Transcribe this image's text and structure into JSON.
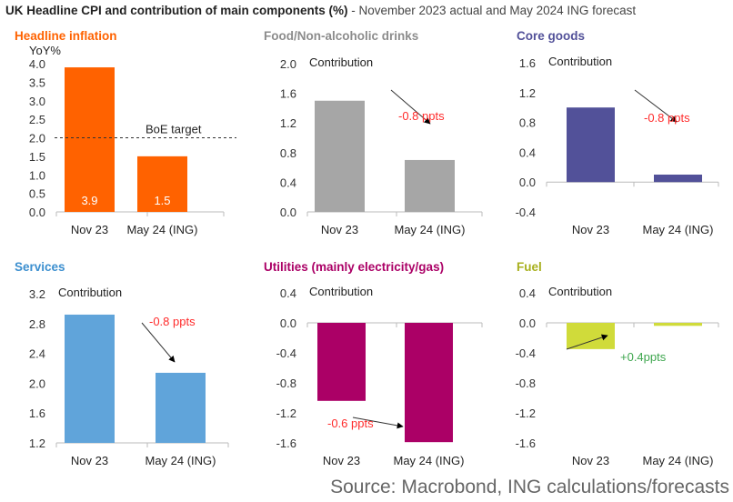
{
  "header": {
    "title_bold": "UK Headline CPI and contribution of main components (%)",
    "title_rest": " - November 2023 actual and May 2024 ING forecast"
  },
  "source": "Source: Macrobond, ING calculations/forecasts",
  "chart_data": [
    {
      "type": "bar",
      "title": "Headline inflation",
      "title_color": "#FF6200",
      "bar_color": "#FF6200",
      "ylabel": "YoY%",
      "categories": [
        "Nov 23",
        "May 24 (ING)"
      ],
      "values": [
        3.9,
        1.5
      ],
      "data_labels": [
        "3.9",
        "1.5"
      ],
      "ylim": [
        0.0,
        4.0
      ],
      "yticks": [
        "4.0",
        "3.5",
        "3.0",
        "2.5",
        "2.0",
        "1.5",
        "1.0",
        "0.5",
        "0.0"
      ],
      "reference_line": {
        "value": 2.0,
        "label": "BoE target",
        "style": "dashed"
      }
    },
    {
      "type": "bar",
      "title": "Food/Non-alcoholic drinks",
      "title_color": "#8C8C8C",
      "bar_color": "#A6A6A6",
      "ylabel": "Contribution",
      "categories": [
        "Nov 23",
        "May 24 (ING)"
      ],
      "values": [
        1.5,
        0.7
      ],
      "ylim": [
        0.0,
        2.0
      ],
      "yticks": [
        "2.0",
        "1.6",
        "1.2",
        "0.8",
        "0.4",
        "0.0"
      ],
      "annotation": {
        "text": "-0.8 ppts",
        "color": "#FF2B2B"
      }
    },
    {
      "type": "bar",
      "title": "Core goods",
      "title_color": "#525199",
      "bar_color": "#525199",
      "ylabel": "Contribution",
      "categories": [
        "Nov 23",
        "May 24 (ING)"
      ],
      "values": [
        1.0,
        0.1
      ],
      "ylim": [
        -0.4,
        1.6
      ],
      "yticks": [
        "1.6",
        "1.2",
        "0.8",
        "0.4",
        "0.0",
        "-0.4"
      ],
      "annotation": {
        "text": "-0.8 ppts",
        "color": "#FF2B2B"
      }
    },
    {
      "type": "bar",
      "title": "Services",
      "title_color": "#3C8FCF",
      "bar_color": "#60A4DA",
      "ylabel": "Contribution",
      "categories": [
        "Nov 23",
        "May 24 (ING)"
      ],
      "values": [
        2.92,
        2.14
      ],
      "ylim": [
        1.2,
        3.2
      ],
      "yticks": [
        "3.2",
        "2.8",
        "2.4",
        "2.0",
        "1.6",
        "1.2"
      ],
      "annotation": {
        "text": "-0.8 ppts",
        "color": "#FF2B2B"
      }
    },
    {
      "type": "bar",
      "title": "Utilities (mainly electricity/gas)",
      "title_color": "#AB0066",
      "bar_color": "#AB0066",
      "ylabel": "Contribution",
      "categories": [
        "Nov 23",
        "May 24 (ING)"
      ],
      "values": [
        -1.04,
        -1.59
      ],
      "ylim": [
        -1.6,
        0.4
      ],
      "yticks": [
        "0.4",
        "0.0",
        "-0.4",
        "-0.8",
        "-1.2",
        "-1.6"
      ],
      "annotation": {
        "text": "-0.6 ppts",
        "color": "#FF2B2B"
      }
    },
    {
      "type": "bar",
      "title": "Fuel",
      "title_color": "#A8B01E",
      "bar_color": "#D0DB3A",
      "ylabel": "Contribution",
      "categories": [
        "Nov 23",
        "May 24 (ING)"
      ],
      "values": [
        -0.35,
        -0.04
      ],
      "ylim": [
        -1.6,
        0.4
      ],
      "yticks": [
        "0.4",
        "0.0",
        "-0.4",
        "-0.8",
        "-1.2",
        "-1.6"
      ],
      "annotation": {
        "text": "+0.4ppts",
        "color": "#3EA64E"
      }
    }
  ]
}
